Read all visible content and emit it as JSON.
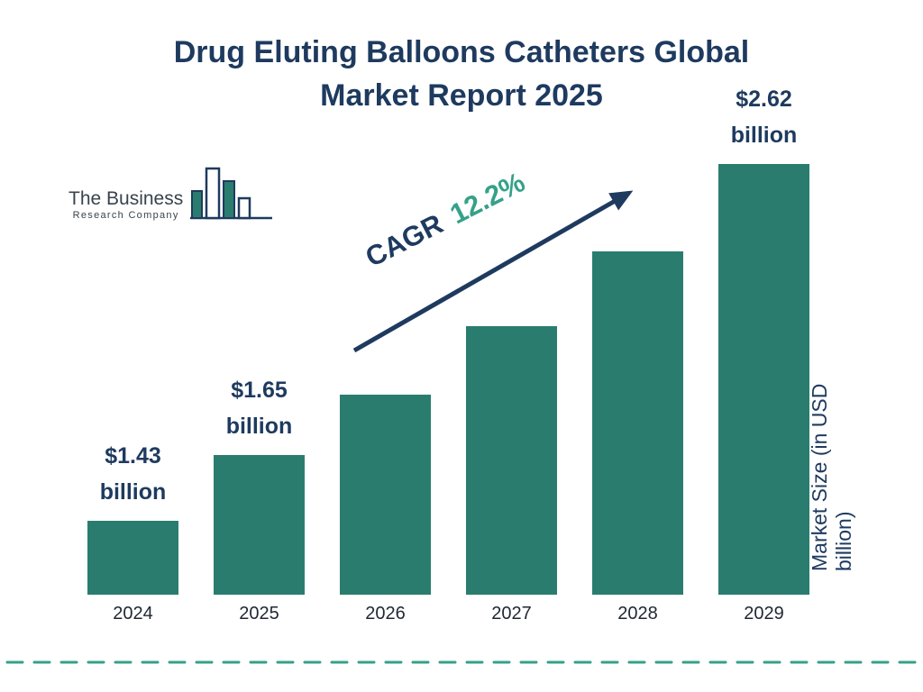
{
  "title": {
    "line1": "Drug Eluting Balloons Catheters Global",
    "line2": "Market Report 2025"
  },
  "logo": {
    "line1": "The Business",
    "line2": "Research Company"
  },
  "colors": {
    "navy": "#1e3a5f",
    "bar_teal": "#2a7d6e",
    "accent_teal": "#35a189",
    "axis_text": "#1f2733"
  },
  "chart_data": {
    "type": "bar",
    "title": "Drug Eluting Balloons Catheters Global Market Report 2025",
    "categories": [
      "2024",
      "2025",
      "2026",
      "2027",
      "2028",
      "2029"
    ],
    "values": [
      1.43,
      1.65,
      1.85,
      2.08,
      2.33,
      2.62
    ],
    "unit": "USD billion",
    "xlabel": "",
    "ylabel": "Market Size (in USD billion)",
    "grid": false,
    "legend": "none",
    "bar_color": "#2a7d6e",
    "value_labels": [
      {
        "category": "2024",
        "value": "$1.43",
        "unit": "billion"
      },
      {
        "category": "2025",
        "value": "$1.65",
        "unit": "billion"
      },
      {
        "category": "2029",
        "value": "$2.62",
        "unit": "billion"
      }
    ],
    "cagr": {
      "label": "CAGR",
      "value": "12.2%"
    }
  }
}
